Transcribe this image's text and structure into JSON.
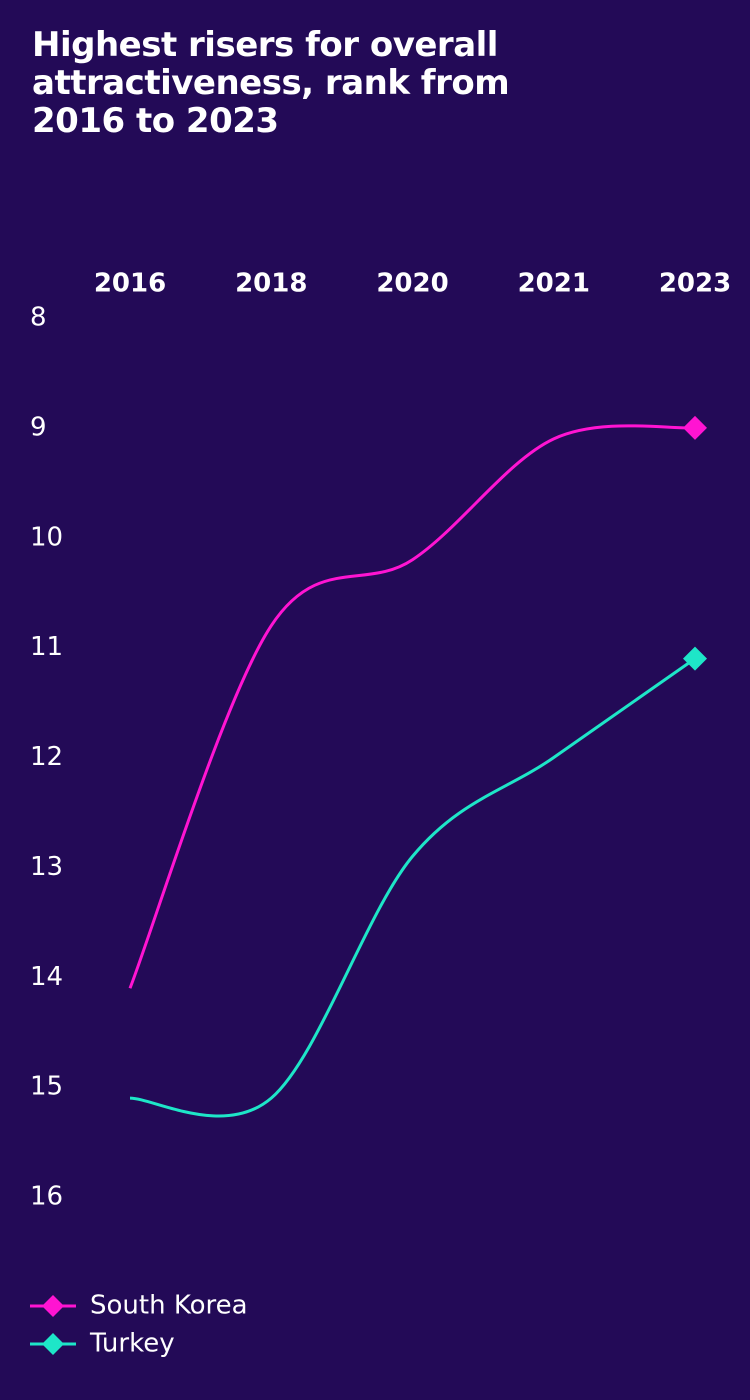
{
  "chart_data": {
    "type": "line",
    "title": "Highest risers for overall attractiveness, rank from 2016 to 2023",
    "categories": [
      "2016",
      "2018",
      "2020",
      "2021",
      "2023"
    ],
    "series": [
      {
        "name": "South Korea",
        "color": "#ff14d2",
        "values": [
          14.1,
          10.8,
          10.2,
          9.1,
          9.0
        ]
      },
      {
        "name": "Turkey",
        "color": "#1ee6c8",
        "values": [
          15.1,
          15.1,
          12.9,
          12.0,
          11.1
        ]
      }
    ],
    "ylim": [
      8,
      16
    ],
    "yticks": [
      8,
      9,
      10,
      11,
      12,
      13,
      14,
      15,
      16
    ],
    "y_inverted": true
  }
}
